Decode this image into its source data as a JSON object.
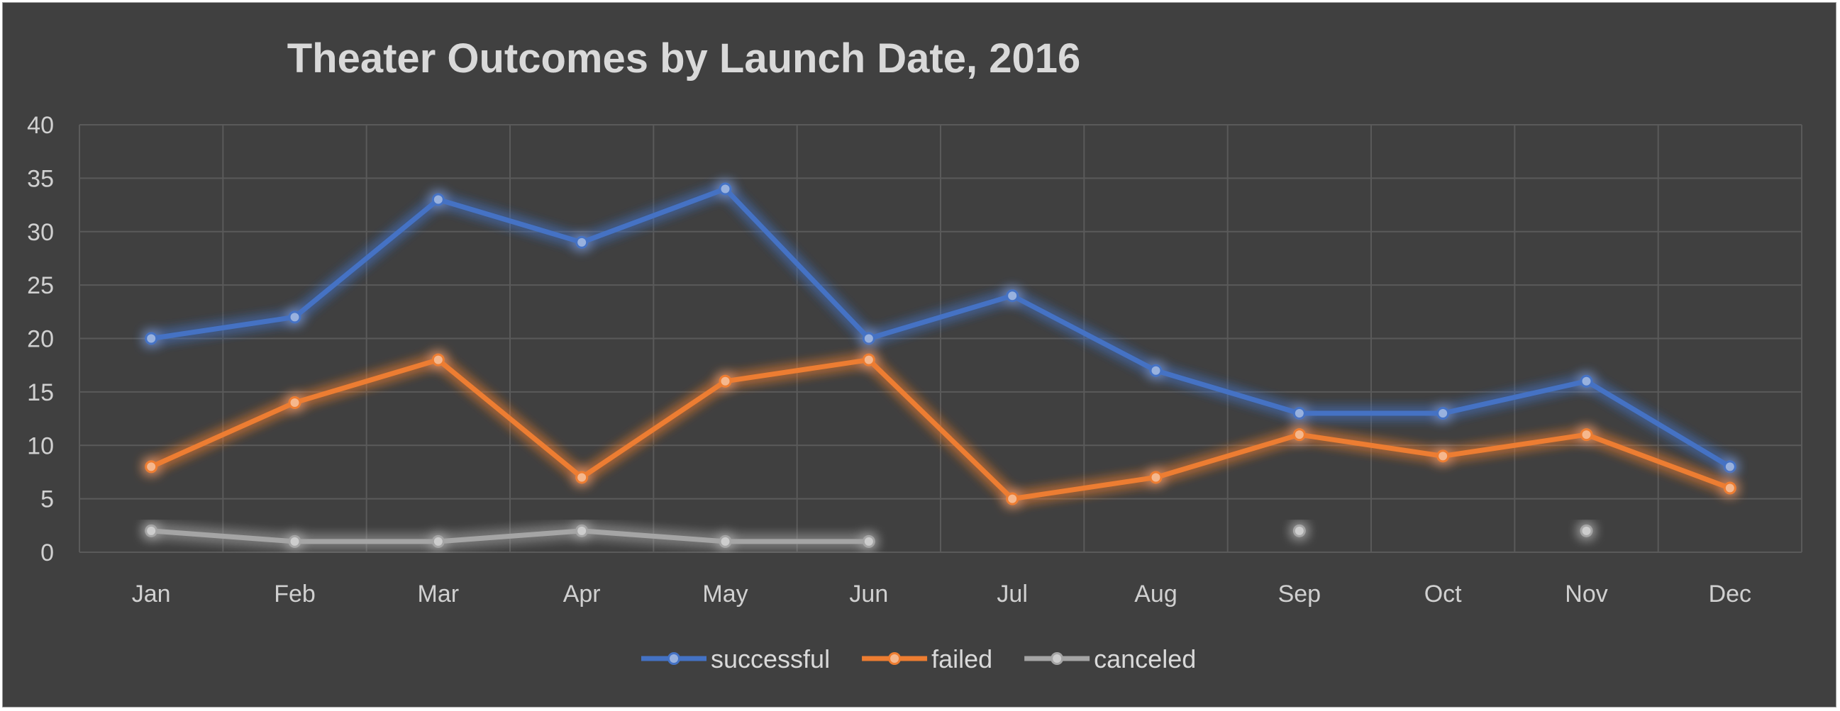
{
  "chart_data": {
    "type": "line",
    "title": "Theater Outcomes by Launch Date, 2016",
    "xlabel": "",
    "ylabel": "",
    "categories": [
      "Jan",
      "Feb",
      "Mar",
      "Apr",
      "May",
      "Jun",
      "Jul",
      "Aug",
      "Sep",
      "Oct",
      "Nov",
      "Dec"
    ],
    "ylim": [
      0,
      40
    ],
    "yticks": [
      0,
      5,
      10,
      15,
      20,
      25,
      30,
      35,
      40
    ],
    "grid": true,
    "legend_position": "bottom",
    "series": [
      {
        "name": "successful",
        "color": "#4472c4",
        "values": [
          20,
          22,
          33,
          29,
          34,
          20,
          24,
          17,
          13,
          13,
          16,
          8
        ]
      },
      {
        "name": "failed",
        "color": "#ed7d31",
        "values": [
          8,
          14,
          18,
          7,
          16,
          18,
          5,
          7,
          11,
          9,
          11,
          6
        ]
      },
      {
        "name": "canceled",
        "color": "#a5a5a5",
        "values": [
          2,
          1,
          1,
          2,
          1,
          1,
          null,
          null,
          2,
          null,
          2,
          null
        ]
      }
    ]
  },
  "style": {
    "background": "#404040",
    "gridline": "#5a5a5a",
    "text": "#d9d9d9"
  }
}
